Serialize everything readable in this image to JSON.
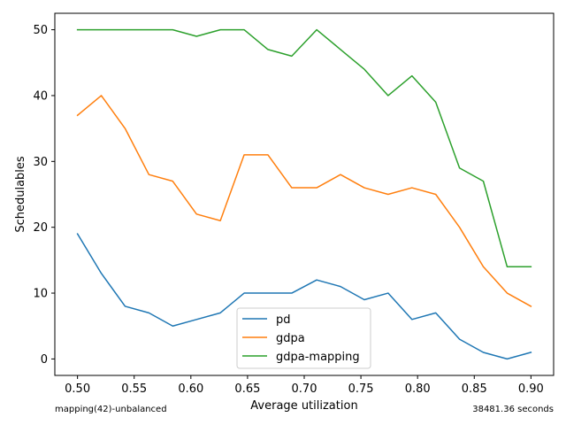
{
  "chart_data": {
    "type": "line",
    "xlabel": "Average utilization",
    "ylabel": "Schedulables",
    "x": [
      0.5,
      0.521,
      0.542,
      0.563,
      0.584,
      0.605,
      0.626,
      0.647,
      0.668,
      0.689,
      0.711,
      0.732,
      0.753,
      0.774,
      0.795,
      0.816,
      0.837,
      0.858,
      0.879,
      0.9
    ],
    "xlim": [
      0.48,
      0.92
    ],
    "ylim": [
      -2.5,
      52.5
    ],
    "xticks": [
      0.5,
      0.55,
      0.6,
      0.65,
      0.7,
      0.75,
      0.8,
      0.85,
      0.9
    ],
    "xtick_labels": [
      "0.50",
      "0.55",
      "0.60",
      "0.65",
      "0.70",
      "0.75",
      "0.80",
      "0.85",
      "0.90"
    ],
    "yticks": [
      0,
      10,
      20,
      30,
      40,
      50
    ],
    "ytick_labels": [
      "0",
      "10",
      "20",
      "30",
      "40",
      "50"
    ],
    "grid": false,
    "legend_position": "bottom-center",
    "series": [
      {
        "name": "pd",
        "color": "#1f77b4",
        "values": [
          19,
          13,
          8,
          7,
          5,
          6,
          7,
          10,
          10,
          10,
          12,
          11,
          9,
          10,
          6,
          7,
          3,
          1,
          0,
          1
        ]
      },
      {
        "name": "gdpa",
        "color": "#ff7f0e",
        "values": [
          37,
          40,
          35,
          28,
          27,
          22,
          21,
          31,
          31,
          26,
          26,
          28,
          26,
          25,
          26,
          25,
          20,
          14,
          10,
          8
        ]
      },
      {
        "name": "gdpa-mapping",
        "color": "#2ca02c",
        "values": [
          50,
          50,
          50,
          50,
          50,
          49,
          50,
          50,
          47,
          46,
          50,
          47,
          44,
          40,
          43,
          39,
          29,
          27,
          14,
          14
        ]
      }
    ]
  },
  "footer": {
    "left_text": "mapping(42)-unbalanced",
    "right_text": "38481.36 seconds"
  }
}
